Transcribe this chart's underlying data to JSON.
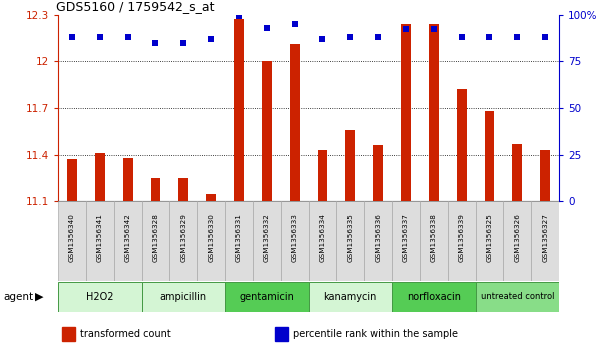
{
  "title": "GDS5160 / 1759542_s_at",
  "samples": [
    "GSM1356340",
    "GSM1356341",
    "GSM1356342",
    "GSM1356328",
    "GSM1356329",
    "GSM1356330",
    "GSM1356331",
    "GSM1356332",
    "GSM1356333",
    "GSM1356334",
    "GSM1356335",
    "GSM1356336",
    "GSM1356337",
    "GSM1356338",
    "GSM1356339",
    "GSM1356325",
    "GSM1356326",
    "GSM1356327"
  ],
  "bar_values": [
    11.37,
    11.41,
    11.38,
    11.25,
    11.25,
    11.15,
    12.27,
    12.0,
    12.11,
    11.43,
    11.56,
    11.46,
    12.24,
    12.24,
    11.82,
    11.68,
    11.47,
    11.43
  ],
  "percentile_values": [
    88,
    88,
    88,
    85,
    85,
    87,
    99,
    93,
    95,
    87,
    88,
    88,
    92,
    92,
    88,
    88,
    88,
    88
  ],
  "groups": [
    {
      "label": "H2O2",
      "start": 0,
      "end": 3,
      "color": "#d4f5d4"
    },
    {
      "label": "ampicillin",
      "start": 3,
      "end": 6,
      "color": "#d4f5d4"
    },
    {
      "label": "gentamicin",
      "start": 6,
      "end": 9,
      "color": "#55cc55"
    },
    {
      "label": "kanamycin",
      "start": 9,
      "end": 12,
      "color": "#d4f5d4"
    },
    {
      "label": "norfloxacin",
      "start": 12,
      "end": 15,
      "color": "#55cc55"
    },
    {
      "label": "untreated control",
      "start": 15,
      "end": 18,
      "color": "#88dd88"
    }
  ],
  "ylim_left": [
    11.1,
    12.3
  ],
  "ylim_right": [
    0,
    100
  ],
  "yticks_left": [
    11.1,
    11.4,
    11.7,
    12.0,
    12.3
  ],
  "ytick_labels_left": [
    "11.1",
    "11.4",
    "11.7",
    "12",
    "12.3"
  ],
  "yticks_right": [
    0,
    25,
    50,
    75,
    100
  ],
  "ytick_labels_right": [
    "0",
    "25",
    "50",
    "75",
    "100%"
  ],
  "bar_color": "#cc2200",
  "dot_color": "#0000cc",
  "grid_color": "#000000",
  "left_tick_color": "#cc2200",
  "right_tick_color": "#0000cc",
  "legend_items": [
    {
      "label": "transformed count",
      "color": "#cc2200"
    },
    {
      "label": "percentile rank within the sample",
      "color": "#0000cc"
    }
  ],
  "agent_label": "agent"
}
